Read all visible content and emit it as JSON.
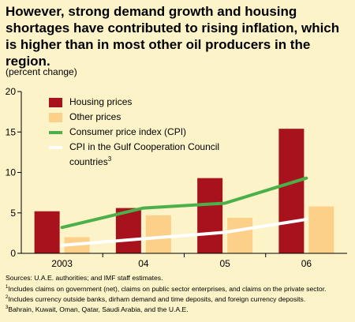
{
  "title": "However, strong demand growth and housing shortages have contributed to rising inflation, which is higher than in most other oil producers in the region.",
  "subtitle": "(percent change)",
  "colors": {
    "background": "#fdf3c8",
    "housing": "#a8121c",
    "other": "#fdd08a",
    "cpi": "#4cb04a",
    "gcc_cpi": "#ffffff"
  },
  "chart_data": {
    "type": "bar",
    "categories": [
      "2003",
      "04",
      "05",
      "06"
    ],
    "ylim": [
      0,
      20
    ],
    "yticks": [
      "0",
      "5",
      "10",
      "15",
      "20"
    ],
    "grid": false,
    "legend": "top-left",
    "series": [
      {
        "name": "Housing prices",
        "kind": "bar",
        "color": "#a8121c",
        "values": [
          5.2,
          5.6,
          9.3,
          15.4
        ]
      },
      {
        "name": "Other prices",
        "kind": "bar",
        "color": "#fdd08a",
        "values": [
          2.0,
          4.7,
          4.4,
          5.8
        ]
      },
      {
        "name": "Consumer price index (CPI)",
        "kind": "line",
        "color": "#4cb04a",
        "values": [
          3.2,
          5.6,
          6.2,
          9.3
        ]
      },
      {
        "name": "CPI in the Gulf Cooperation Council countries",
        "superscript": "3",
        "kind": "line",
        "color": "#ffffff",
        "values": [
          1.0,
          1.8,
          2.6,
          4.2
        ]
      }
    ]
  },
  "notes": {
    "sources": "Sources: U.A.E. authorities; and IMF staff estimates.",
    "note1_mark": "1",
    "note1": "Includes claims on government (net), claims on public sector enterprises, and claims on the private sector.",
    "note2_mark": "2",
    "note2": "Includes currency outside banks, dirham demand and time deposits, and foreign currency deposits.",
    "note3_mark": "3",
    "note3": "Bahrain, Kuwait, Oman, Qatar, Saudi Arabia, and the U.A.E."
  }
}
